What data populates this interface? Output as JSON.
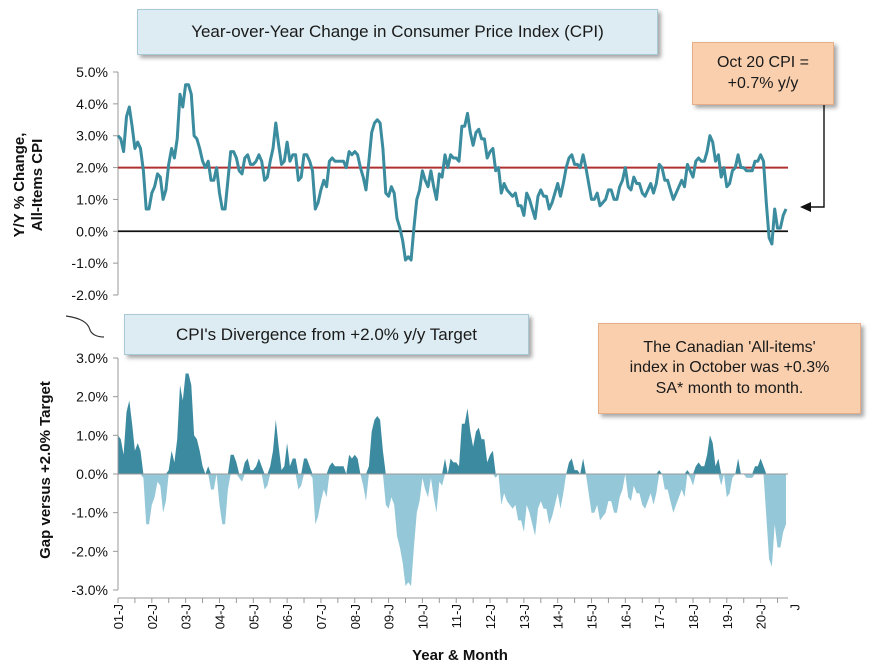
{
  "chart_data": [
    {
      "type": "line",
      "title": "Year-over-Year Change in Consumer Price Index (CPI)",
      "ylabel_line1": "Y/Y % Change,",
      "ylabel_line2": "All-Items CPI",
      "ylim": [
        -2.0,
        5.0
      ],
      "yticks": [
        "5.0%",
        "4.0%",
        "3.0%",
        "2.0%",
        "1.0%",
        "0.0%",
        "-1.0%",
        "-2.0%"
      ],
      "target_value": 2.0,
      "target_color": "#b03030",
      "series_color": "#3a8c9e",
      "series": [
        {
          "name": "Y/Y % Change, All-Items CPI",
          "start": "2001-01",
          "values": [
            3.0,
            2.9,
            2.5,
            3.6,
            3.9,
            3.3,
            2.6,
            2.8,
            2.6,
            1.9,
            0.7,
            0.7,
            1.2,
            1.4,
            1.8,
            1.7,
            1.0,
            1.3,
            2.1,
            2.6,
            2.3,
            2.9,
            4.3,
            3.9,
            4.6,
            4.6,
            4.3,
            3.0,
            2.9,
            2.6,
            2.2,
            2.0,
            2.2,
            1.6,
            1.6,
            2.0,
            1.2,
            0.7,
            0.7,
            1.6,
            2.5,
            2.5,
            2.3,
            1.9,
            1.8,
            2.3,
            2.4,
            2.1,
            2.1,
            2.2,
            2.4,
            2.2,
            1.6,
            1.7,
            2.2,
            2.6,
            3.4,
            2.7,
            2.1,
            2.2,
            2.8,
            2.2,
            2.4,
            2.4,
            1.6,
            1.7,
            2.4,
            2.4,
            2.2,
            1.9,
            0.7,
            0.9,
            1.3,
            1.6,
            1.4,
            2.2,
            2.3,
            2.2,
            2.2,
            2.2,
            2.2,
            2.0,
            2.5,
            2.4,
            2.5,
            2.4,
            2.0,
            1.7,
            1.3,
            2.2,
            3.1,
            3.4,
            3.5,
            3.4,
            2.6,
            1.2,
            1.1,
            1.4,
            1.2,
            0.4,
            0.1,
            -0.3,
            -0.9,
            -0.8,
            -0.9,
            0.1,
            1.0,
            1.3,
            1.9,
            1.6,
            1.4,
            1.9,
            1.4,
            1.0,
            1.8,
            1.7,
            2.4,
            2.0,
            2.4,
            2.3,
            2.3,
            2.2,
            3.3,
            3.3,
            3.7,
            3.1,
            2.7,
            3.1,
            3.2,
            2.9,
            2.9,
            2.3,
            2.5,
            2.6,
            1.9,
            2.0,
            1.2,
            1.5,
            1.3,
            1.2,
            1.1,
            1.2,
            0.8,
            0.8,
            0.5,
            1.2,
            1.0,
            0.7,
            0.4,
            1.1,
            1.3,
            1.1,
            1.1,
            0.7,
            0.9,
            1.2,
            1.5,
            1.1,
            1.5,
            2.0,
            2.3,
            2.4,
            2.1,
            2.1,
            2.0,
            2.4,
            2.0,
            1.5,
            1.0,
            1.0,
            1.2,
            0.8,
            0.9,
            1.0,
            1.3,
            1.3,
            1.0,
            1.0,
            1.4,
            1.6,
            2.0,
            1.4,
            1.3,
            1.7,
            1.5,
            1.5,
            1.2,
            1.1,
            1.3,
            1.5,
            1.2,
            1.5,
            2.1,
            2.0,
            1.6,
            1.6,
            1.3,
            1.0,
            1.2,
            1.4,
            1.6,
            1.4,
            2.1,
            1.9,
            1.7,
            2.2,
            2.3,
            2.2,
            2.2,
            2.5,
            3.0,
            2.8,
            2.2,
            2.4,
            1.7,
            2.0,
            1.4,
            1.5,
            1.9,
            2.0,
            2.4,
            2.0,
            2.0,
            1.9,
            1.9,
            1.9,
            2.2,
            2.2,
            2.4,
            2.2,
            0.9,
            -0.2,
            -0.4,
            0.7,
            0.1,
            0.1,
            0.5,
            0.7
          ]
        }
      ]
    },
    {
      "type": "area",
      "title": "CPI's Divergence from +2.0% y/y Target",
      "ylabel": "Gap versus +2.0% Target",
      "ylim": [
        -3.0,
        3.0
      ],
      "yticks": [
        "3.0%",
        "2.0%",
        "1.0%",
        "0.0%",
        "-1.0%",
        "-2.0%",
        "-3.0%"
      ],
      "derived_from": "series above minus 2.0",
      "positive_color": "#3b8aa0",
      "negative_color": "#94c8d8",
      "xlabel": "Year & Month",
      "xticks": [
        "01-J",
        "02-J",
        "03-J",
        "04-J",
        "05-J",
        "06-J",
        "07-J",
        "08-J",
        "09-J",
        "10-J",
        "11-J",
        "12-J",
        "13-J",
        "14-J",
        "15-J",
        "16-J",
        "17-J",
        "18-J",
        "19-J",
        "20-J",
        "J"
      ]
    }
  ],
  "callouts": {
    "oct_cpi_line1": "Oct 20 CPI =",
    "oct_cpi_line2": "+0.7% y/y",
    "canada_line1": "The Canadian 'All-items'",
    "canada_line2": "index in October was +0.3%",
    "canada_line3": "SA* month to month."
  }
}
